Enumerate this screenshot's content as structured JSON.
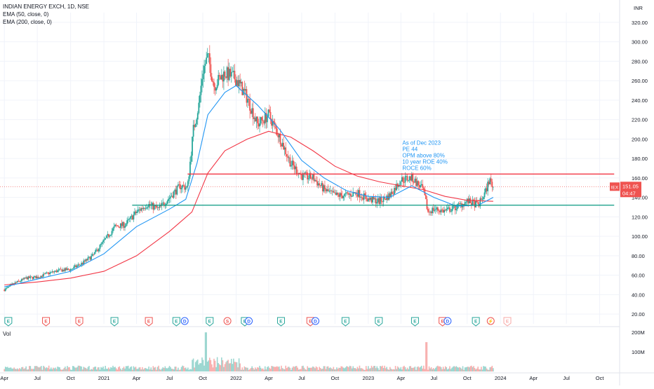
{
  "header": {
    "symbol_line": "INDIAN ENERGY EXCH, 1D, NSE",
    "indicators": [
      "EMA (50, close, 0)",
      "EMA (200, close, 0)"
    ],
    "currency": "INR"
  },
  "annotation": {
    "lines": [
      "As of Dec 2023",
      "PE 44",
      "OPM above 80%",
      "10 year ROE 40%",
      "ROCE 60%"
    ]
  },
  "price_tag": {
    "ticker": "IEX",
    "price": "151.05",
    "timer": "04:47",
    "value": 151.05
  },
  "volume_pane": {
    "label": "Vol",
    "ticks": [
      {
        "label": "200M",
        "value": 200
      },
      {
        "label": "100M",
        "value": 100
      }
    ]
  },
  "colors": {
    "up": "#26a69a",
    "down": "#ef5350",
    "ema50": "#2196f3",
    "ema200": "#f23645",
    "resistance": "#f23645",
    "support": "#089981",
    "annotation": "#2196f3",
    "axis_text": "#131722",
    "grid": "#f0f3fa"
  },
  "chart_data": {
    "type": "candlestick",
    "y_axis": {
      "min": 10,
      "max": 330,
      "ticks": [
        20,
        40,
        60,
        80,
        100,
        120,
        140,
        160,
        180,
        200,
        220,
        240,
        260,
        280,
        300,
        320
      ],
      "tick_labels": [
        "20.00",
        "40.00",
        "60.00",
        "80.00",
        "100.00",
        "120.00",
        "140.00",
        "160.00",
        "180.00",
        "200.00",
        "220.00",
        "240.00",
        "260.00",
        "280.00",
        "300.00",
        "320.00"
      ]
    },
    "x_axis": {
      "start": "2020-04",
      "end": "2024-11",
      "labels": [
        {
          "label": "Apr",
          "date": "2020-04"
        },
        {
          "label": "Jul",
          "date": "2020-07"
        },
        {
          "label": "Oct",
          "date": "2020-10"
        },
        {
          "label": "2021",
          "date": "2021-01"
        },
        {
          "label": "Apr",
          "date": "2021-04"
        },
        {
          "label": "Jul",
          "date": "2021-07"
        },
        {
          "label": "Oct",
          "date": "2021-10"
        },
        {
          "label": "2022",
          "date": "2022-01"
        },
        {
          "label": "Apr",
          "date": "2022-04"
        },
        {
          "label": "Jul",
          "date": "2022-07"
        },
        {
          "label": "Oct",
          "date": "2022-10"
        },
        {
          "label": "2023",
          "date": "2023-01"
        },
        {
          "label": "Apr",
          "date": "2023-04"
        },
        {
          "label": "Jul",
          "date": "2023-07"
        },
        {
          "label": "Oct",
          "date": "2023-10"
        },
        {
          "label": "2024",
          "date": "2024-01"
        },
        {
          "label": "Apr",
          "date": "2024-04"
        },
        {
          "label": "Jul",
          "date": "2024-07"
        },
        {
          "label": "Oct",
          "date": "2024-10"
        }
      ]
    },
    "price_path": [
      [
        "2020-04-01",
        45
      ],
      [
        "2020-05-01",
        52
      ],
      [
        "2020-06-01",
        57
      ],
      [
        "2020-07-01",
        58
      ],
      [
        "2020-08-01",
        62
      ],
      [
        "2020-09-01",
        65
      ],
      [
        "2020-10-01",
        66
      ],
      [
        "2020-11-01",
        72
      ],
      [
        "2020-12-01",
        80
      ],
      [
        "2021-01-01",
        95
      ],
      [
        "2021-02-01",
        110
      ],
      [
        "2021-03-01",
        112
      ],
      [
        "2021-04-01",
        125
      ],
      [
        "2021-05-01",
        133
      ],
      [
        "2021-06-01",
        128
      ],
      [
        "2021-07-01",
        140
      ],
      [
        "2021-08-01",
        152
      ],
      [
        "2021-08-20",
        150
      ],
      [
        "2021-09-05",
        210
      ],
      [
        "2021-09-20",
        235
      ],
      [
        "2021-10-01",
        270
      ],
      [
        "2021-10-15",
        285
      ],
      [
        "2021-11-01",
        255
      ],
      [
        "2021-12-01",
        268
      ],
      [
        "2022-01-01",
        262
      ],
      [
        "2022-02-01",
        242
      ],
      [
        "2022-03-01",
        215
      ],
      [
        "2022-04-01",
        225
      ],
      [
        "2022-05-01",
        202
      ],
      [
        "2022-06-01",
        175
      ],
      [
        "2022-07-01",
        162
      ],
      [
        "2022-08-01",
        160
      ],
      [
        "2022-09-01",
        148
      ],
      [
        "2022-10-01",
        142
      ],
      [
        "2022-11-01",
        142
      ],
      [
        "2022-12-01",
        145
      ],
      [
        "2023-01-01",
        138
      ],
      [
        "2023-02-01",
        136
      ],
      [
        "2023-03-01",
        142
      ],
      [
        "2023-04-01",
        158
      ],
      [
        "2023-05-01",
        160
      ],
      [
        "2023-06-01",
        148
      ],
      [
        "2023-06-15",
        125
      ],
      [
        "2023-07-01",
        128
      ],
      [
        "2023-08-01",
        126
      ],
      [
        "2023-09-01",
        130
      ],
      [
        "2023-10-01",
        136
      ],
      [
        "2023-11-01",
        132
      ],
      [
        "2023-11-20",
        145
      ],
      [
        "2023-12-01",
        158
      ],
      [
        "2023-12-12",
        151.05
      ]
    ],
    "ema50": [
      [
        "2020-04-01",
        48
      ],
      [
        "2020-07-01",
        56
      ],
      [
        "2020-10-01",
        64
      ],
      [
        "2021-01-01",
        82
      ],
      [
        "2021-04-01",
        110
      ],
      [
        "2021-07-01",
        128
      ],
      [
        "2021-08-15",
        138
      ],
      [
        "2021-09-15",
        175
      ],
      [
        "2021-10-15",
        225
      ],
      [
        "2021-12-01",
        248
      ],
      [
        "2022-01-01",
        255
      ],
      [
        "2022-03-01",
        235
      ],
      [
        "2022-05-01",
        210
      ],
      [
        "2022-07-01",
        178
      ],
      [
        "2022-09-01",
        160
      ],
      [
        "2022-11-01",
        147
      ],
      [
        "2023-01-01",
        141
      ],
      [
        "2023-03-01",
        140
      ],
      [
        "2023-05-01",
        152
      ],
      [
        "2023-07-01",
        140
      ],
      [
        "2023-09-01",
        131
      ],
      [
        "2023-11-01",
        132
      ],
      [
        "2023-12-12",
        140
      ]
    ],
    "ema200": [
      [
        "2020-04-01",
        50
      ],
      [
        "2020-07-01",
        53
      ],
      [
        "2020-10-01",
        57
      ],
      [
        "2021-01-01",
        64
      ],
      [
        "2021-04-01",
        80
      ],
      [
        "2021-07-01",
        105
      ],
      [
        "2021-09-01",
        125
      ],
      [
        "2021-10-15",
        165
      ],
      [
        "2021-12-01",
        188
      ],
      [
        "2022-02-01",
        200
      ],
      [
        "2022-04-01",
        208
      ],
      [
        "2022-06-01",
        202
      ],
      [
        "2022-08-01",
        188
      ],
      [
        "2022-10-01",
        172
      ],
      [
        "2022-12-01",
        162
      ],
      [
        "2023-02-01",
        156
      ],
      [
        "2023-04-01",
        152
      ],
      [
        "2023-06-01",
        148
      ],
      [
        "2023-08-01",
        141
      ],
      [
        "2023-10-01",
        137
      ],
      [
        "2023-12-12",
        136
      ]
    ],
    "resistance_line": {
      "value": 164,
      "from": "2021-08-20",
      "to": "2024-11-10"
    },
    "support_line": {
      "value": 132,
      "from": "2021-03-20",
      "to": "2024-11-10"
    },
    "event_badges": [
      {
        "label": "E",
        "date": "2020-04-12",
        "kind": "green"
      },
      {
        "label": "E",
        "date": "2020-07-25",
        "kind": "red"
      },
      {
        "label": "E",
        "date": "2020-10-25",
        "kind": "red"
      },
      {
        "label": "E",
        "date": "2021-01-30",
        "kind": "green"
      },
      {
        "label": "E",
        "date": "2021-05-05",
        "kind": "red"
      },
      {
        "label": "E",
        "date": "2021-07-20",
        "kind": "green"
      },
      {
        "label": "D",
        "date": "2021-08-12",
        "kind": "blue"
      },
      {
        "label": "E",
        "date": "2021-10-20",
        "kind": "green"
      },
      {
        "label": "S",
        "date": "2021-12-08",
        "kind": "redcircle"
      },
      {
        "label": "E",
        "date": "2022-01-25",
        "kind": "green"
      },
      {
        "label": "D",
        "date": "2022-02-05",
        "kind": "blue"
      },
      {
        "label": "E",
        "date": "2022-05-05",
        "kind": "green"
      },
      {
        "label": "E",
        "date": "2022-07-25",
        "kind": "red"
      },
      {
        "label": "D",
        "date": "2022-08-08",
        "kind": "blue"
      },
      {
        "label": "E",
        "date": "2022-10-30",
        "kind": "green"
      },
      {
        "label": "E",
        "date": "2023-01-30",
        "kind": "green"
      },
      {
        "label": "E",
        "date": "2023-05-10",
        "kind": "green"
      },
      {
        "label": "E",
        "date": "2023-07-25",
        "kind": "red"
      },
      {
        "label": "D",
        "date": "2023-08-08",
        "kind": "blue"
      },
      {
        "label": "E",
        "date": "2023-10-25",
        "kind": "green"
      },
      {
        "label": "⚡",
        "date": "2023-12-05",
        "kind": "flash"
      },
      {
        "label": "E",
        "date": "2024-01-20",
        "kind": "faded"
      }
    ]
  }
}
